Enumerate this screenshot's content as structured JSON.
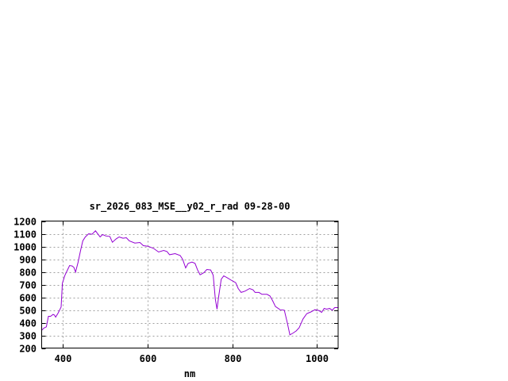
{
  "chart_data": {
    "type": "line",
    "title": "sr_2026_083_MSE__y02_r_rad 09-28-00",
    "xlabel": "nm",
    "ylabel": "",
    "xlim": [
      350,
      1050
    ],
    "ylim": [
      200,
      1200
    ],
    "xticks": [
      400,
      600,
      800,
      1000
    ],
    "yticks": [
      200,
      300,
      400,
      500,
      600,
      700,
      800,
      900,
      1000,
      1100,
      1200
    ],
    "grid": true,
    "line_color": "#9400d3",
    "series": [
      {
        "x": [
          350,
          355,
          361,
          366,
          371,
          377,
          380,
          383,
          389,
          396,
          399,
          405,
          411,
          416,
          422,
          426,
          430,
          436,
          442,
          447,
          453,
          461,
          469,
          477,
          483,
          488,
          494,
          501,
          511,
          517,
          526,
          533,
          542,
          550,
          557,
          570,
          582,
          590,
          601,
          614,
          626,
          638,
          646,
          652,
          665,
          677,
          683,
          690,
          696,
          705,
          712,
          718,
          724,
          733,
          740,
          749,
          755,
          760,
          764,
          768,
          774,
          780,
          789,
          799,
          808,
          814,
          821,
          830,
          841,
          849,
          854,
          863,
          870,
          882,
          889,
          895,
          902,
          913,
          923,
          930,
          936,
          944,
          951,
          958,
          967,
          976,
          986,
          995,
          1004,
          1011,
          1017,
          1023,
          1030,
          1036,
          1042,
          1050
        ],
        "y": [
          340,
          357,
          367,
          450,
          450,
          465,
          460,
          444,
          477,
          523,
          710,
          773,
          815,
          850,
          846,
          835,
          798,
          877,
          971,
          1044,
          1075,
          1100,
          1096,
          1123,
          1096,
          1075,
          1094,
          1083,
          1079,
          1033,
          1060,
          1075,
          1065,
          1069,
          1044,
          1027,
          1031,
          1006,
          1002,
          985,
          956,
          969,
          960,
          935,
          944,
          929,
          898,
          831,
          867,
          877,
          867,
          815,
          777,
          794,
          819,
          815,
          773,
          585,
          506,
          606,
          742,
          769,
          752,
          731,
          715,
          669,
          638,
          648,
          669,
          658,
          638,
          638,
          623,
          623,
          610,
          575,
          527,
          502,
          498,
          398,
          304,
          319,
          335,
          360,
          429,
          471,
          485,
          502,
          496,
          481,
          512,
          506,
          512,
          498,
          519,
          519
        ]
      }
    ]
  }
}
